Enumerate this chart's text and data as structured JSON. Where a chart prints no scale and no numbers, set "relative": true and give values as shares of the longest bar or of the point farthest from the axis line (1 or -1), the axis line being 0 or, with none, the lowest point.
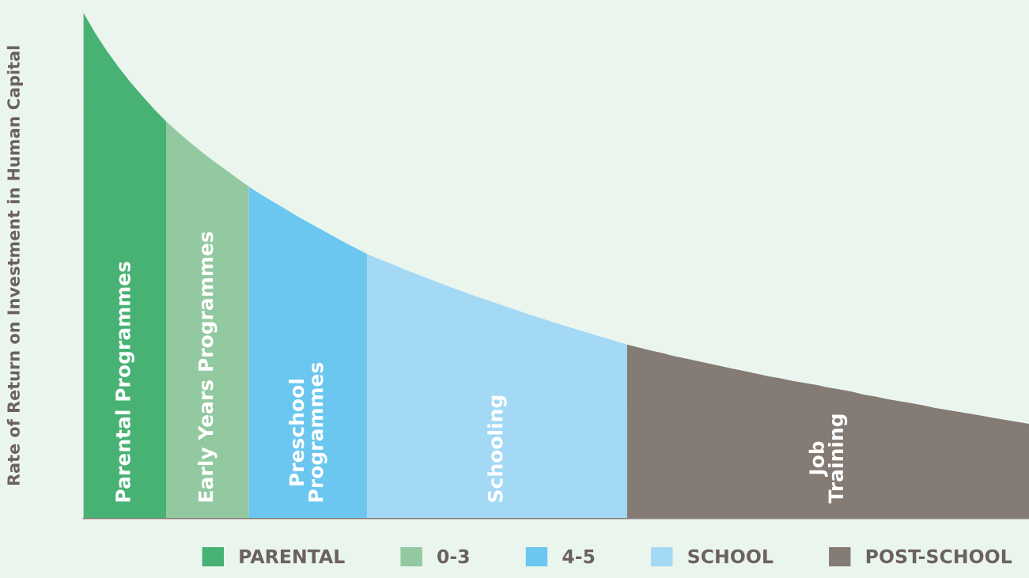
{
  "chart_data": {
    "type": "area",
    "relative": true,
    "ylabel": "Rate of Return on Investment in Human Capital",
    "legend": "bottom",
    "categories": [
      null,
      null,
      null,
      null,
      null,
      null,
      null,
      null,
      null,
      null,
      null,
      null,
      null,
      null,
      null,
      null,
      null,
      null,
      null,
      null,
      null,
      null,
      null,
      null,
      null,
      null,
      null,
      null,
      null,
      null,
      null,
      null,
      null,
      null,
      null,
      null,
      null,
      null,
      null,
      null,
      null,
      null,
      null,
      null,
      null,
      null,
      null,
      null,
      null,
      null,
      null,
      null,
      null,
      null,
      null,
      null,
      null,
      null,
      null,
      null,
      null,
      null,
      null,
      null,
      null,
      null,
      null,
      null,
      null,
      null,
      null,
      null,
      null,
      null,
      null,
      null,
      null,
      null,
      null,
      null,
      null
    ],
    "series": [
      {
        "name": "PARENTAL",
        "color": "#48b275",
        "values": [
          1,
          0.96,
          0.924,
          0.892,
          0.862,
          0.835,
          0.809,
          0.785,
          null,
          null,
          null,
          null,
          null,
          null,
          null,
          null,
          null,
          null,
          null,
          null,
          null,
          null,
          null,
          null,
          null,
          null,
          null,
          null,
          null,
          null,
          null,
          null,
          null,
          null,
          null,
          null,
          null,
          null,
          null,
          null,
          null,
          null,
          null,
          null,
          null,
          null,
          null,
          null,
          null,
          null,
          null,
          null,
          null,
          null,
          null,
          null,
          null,
          null,
          null,
          null,
          null,
          null,
          null,
          null,
          null,
          null,
          null,
          null,
          null,
          null,
          null,
          null,
          null,
          null,
          null,
          null,
          null,
          null,
          null,
          null,
          null
        ]
      },
      {
        "name": "0-3",
        "color": "#93c9a0",
        "values": [
          null,
          null,
          null,
          null,
          null,
          null,
          null,
          0.785,
          0.764,
          0.744,
          0.725,
          0.707,
          0.69,
          0.673,
          0.656,
          null,
          null,
          null,
          null,
          null,
          null,
          null,
          null,
          null,
          null,
          null,
          null,
          null,
          null,
          null,
          null,
          null,
          null,
          null,
          null,
          null,
          null,
          null,
          null,
          null,
          null,
          null,
          null,
          null,
          null,
          null,
          null,
          null,
          null,
          null,
          null,
          null,
          null,
          null,
          null,
          null,
          null,
          null,
          null,
          null,
          null,
          null,
          null,
          null,
          null,
          null,
          null,
          null,
          null,
          null,
          null,
          null,
          null,
          null,
          null,
          null,
          null,
          null,
          null,
          null,
          null
        ]
      },
      {
        "name": "4-5",
        "color": "#6bc7ef",
        "values": [
          null,
          null,
          null,
          null,
          null,
          null,
          null,
          null,
          null,
          null,
          null,
          null,
          null,
          null,
          0.656,
          0.641,
          0.627,
          0.613,
          0.599,
          0.586,
          0.573,
          0.56,
          0.547,
          0.535,
          0.523,
          null,
          null,
          null,
          null,
          null,
          null,
          null,
          null,
          null,
          null,
          null,
          null,
          null,
          null,
          null,
          null,
          null,
          null,
          null,
          null,
          null,
          null,
          null,
          null,
          null,
          null,
          null,
          null,
          null,
          null,
          null,
          null,
          null,
          null,
          null,
          null,
          null,
          null,
          null,
          null,
          null,
          null,
          null,
          null,
          null,
          null,
          null,
          null,
          null,
          null,
          null,
          null,
          null,
          null,
          null,
          null
        ]
      },
      {
        "name": "SCHOOL",
        "color": "#a4d9f5",
        "values": [
          null,
          null,
          null,
          null,
          null,
          null,
          null,
          null,
          null,
          null,
          null,
          null,
          null,
          null,
          null,
          null,
          null,
          null,
          null,
          null,
          null,
          null,
          null,
          null,
          0.523,
          0.513,
          0.504,
          0.494,
          0.485,
          0.476,
          0.467,
          0.458,
          0.45,
          0.441,
          0.433,
          0.425,
          0.417,
          0.409,
          0.401,
          0.394,
          0.386,
          0.379,
          0.372,
          0.365,
          0.358,
          0.351,
          0.344,
          null,
          null,
          null,
          null,
          null,
          null,
          null,
          null,
          null,
          null,
          null,
          null,
          null,
          null,
          null,
          null,
          null,
          null,
          null,
          null,
          null,
          null,
          null,
          null,
          null,
          null,
          null,
          null,
          null,
          null,
          null,
          null,
          null,
          null
        ]
      },
      {
        "name": "POST-SCHOOL",
        "color": "#857b75",
        "values": [
          null,
          null,
          null,
          null,
          null,
          null,
          null,
          null,
          null,
          null,
          null,
          null,
          null,
          null,
          null,
          null,
          null,
          null,
          null,
          null,
          null,
          null,
          null,
          null,
          null,
          null,
          null,
          null,
          null,
          null,
          null,
          null,
          null,
          null,
          null,
          null,
          null,
          null,
          null,
          null,
          null,
          null,
          null,
          null,
          null,
          null,
          0.344,
          0.338,
          0.332,
          0.327,
          0.321,
          0.316,
          0.311,
          0.306,
          0.301,
          0.296,
          0.291,
          0.286,
          0.281,
          0.277,
          0.272,
          0.268,
          0.264,
          0.259,
          0.255,
          0.251,
          0.245,
          0.241,
          0.236,
          0.232,
          0.228,
          0.224,
          0.219,
          0.215,
          0.211,
          0.207,
          0.203,
          0.199,
          0.195,
          0.191,
          0.187
        ]
      }
    ],
    "annotations": [
      "Parental Programmes",
      "Early Years Programmes",
      "Preschool\nProgrammes",
      "Schooling",
      "Job\nTraining"
    ]
  }
}
